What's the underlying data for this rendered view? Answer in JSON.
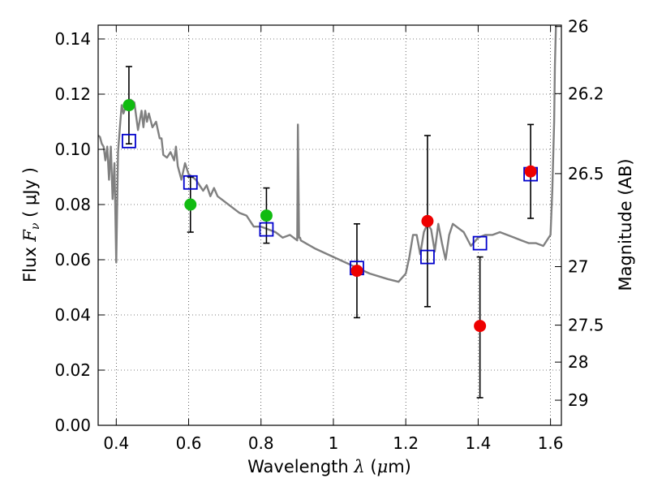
{
  "chart_data": {
    "type": "scatter",
    "xlabel": {
      "prefix": "Wavelength  ",
      "symbol": "λ",
      "unit_open": " (",
      "unit_mu": "μ",
      "unit_close": "m)"
    },
    "ylabel": {
      "prefix": "Flux  ",
      "symbol": "F",
      "subscript": "ν",
      "unit": "  ( μJy )"
    },
    "y2label": "Magnitude (AB)",
    "xlim": [
      0.35,
      1.63
    ],
    "ylim": [
      0.0,
      0.145
    ],
    "x_ticks": [
      {
        "value": 0.4,
        "label": "0.4"
      },
      {
        "value": 0.6,
        "label": "0.6"
      },
      {
        "value": 0.8,
        "label": "0.8"
      },
      {
        "value": 1.0,
        "label": "1"
      },
      {
        "value": 1.2,
        "label": "1.2"
      },
      {
        "value": 1.4,
        "label": "1.4"
      },
      {
        "value": 1.6,
        "label": "1.6"
      }
    ],
    "y_ticks": [
      {
        "value": 0.0,
        "label": "0.00"
      },
      {
        "value": 0.02,
        "label": "0.02"
      },
      {
        "value": 0.04,
        "label": "0.04"
      },
      {
        "value": 0.06,
        "label": "0.06"
      },
      {
        "value": 0.08,
        "label": "0.08"
      },
      {
        "value": 0.1,
        "label": "0.10"
      },
      {
        "value": 0.12,
        "label": "0.12"
      },
      {
        "value": 0.14,
        "label": "0.14"
      }
    ],
    "y2_ticks": [
      {
        "flux": 0.1445,
        "label": "26"
      },
      {
        "flux": 0.1202,
        "label": "26.2"
      },
      {
        "flux": 0.0912,
        "label": "26.5"
      },
      {
        "flux": 0.0575,
        "label": "27"
      },
      {
        "flux": 0.0363,
        "label": "27.5"
      },
      {
        "flux": 0.0229,
        "label": "28"
      },
      {
        "flux": 0.0091,
        "label": "29"
      }
    ],
    "grid": true,
    "grid_style": "dotted",
    "colors": {
      "model": "#808080",
      "green": "#11bb11",
      "red": "#ee0000",
      "box": "#0000cc",
      "errorbar": "#000000"
    },
    "model_spectrum": {
      "x": [
        0.35,
        0.355,
        0.36,
        0.365,
        0.37,
        0.375,
        0.38,
        0.385,
        0.39,
        0.395,
        0.4,
        0.405,
        0.41,
        0.415,
        0.42,
        0.43,
        0.44,
        0.45,
        0.46,
        0.47,
        0.475,
        0.48,
        0.485,
        0.49,
        0.5,
        0.51,
        0.52,
        0.525,
        0.53,
        0.54,
        0.55,
        0.56,
        0.565,
        0.57,
        0.58,
        0.59,
        0.6,
        0.61,
        0.62,
        0.63,
        0.64,
        0.65,
        0.66,
        0.67,
        0.68,
        0.7,
        0.72,
        0.74,
        0.76,
        0.78,
        0.8,
        0.82,
        0.84,
        0.86,
        0.88,
        0.9,
        0.902,
        0.905,
        0.908,
        0.91,
        0.95,
        1.0,
        1.05,
        1.1,
        1.15,
        1.18,
        1.2,
        1.21,
        1.22,
        1.23,
        1.24,
        1.25,
        1.26,
        1.27,
        1.28,
        1.29,
        1.3,
        1.31,
        1.32,
        1.33,
        1.34,
        1.36,
        1.38,
        1.4,
        1.42,
        1.44,
        1.46,
        1.48,
        1.5,
        1.52,
        1.54,
        1.56,
        1.58,
        1.6,
        1.605,
        1.61,
        1.612,
        1.615
      ],
      "y": [
        0.105,
        0.1045,
        0.102,
        0.101,
        0.096,
        0.101,
        0.089,
        0.101,
        0.082,
        0.095,
        0.059,
        0.099,
        0.108,
        0.116,
        0.113,
        0.117,
        0.118,
        0.117,
        0.107,
        0.114,
        0.108,
        0.114,
        0.11,
        0.113,
        0.108,
        0.11,
        0.104,
        0.104,
        0.098,
        0.097,
        0.099,
        0.096,
        0.101,
        0.094,
        0.089,
        0.095,
        0.091,
        0.09,
        0.089,
        0.087,
        0.085,
        0.087,
        0.083,
        0.086,
        0.083,
        0.081,
        0.079,
        0.077,
        0.076,
        0.072,
        0.072,
        0.071,
        0.07,
        0.068,
        0.069,
        0.067,
        0.109,
        0.068,
        0.068,
        0.067,
        0.064,
        0.061,
        0.058,
        0.055,
        0.053,
        0.052,
        0.055,
        0.061,
        0.069,
        0.069,
        0.062,
        0.07,
        0.073,
        0.071,
        0.063,
        0.073,
        0.066,
        0.06,
        0.069,
        0.073,
        0.072,
        0.07,
        0.065,
        0.068,
        0.069,
        0.069,
        0.07,
        0.069,
        0.068,
        0.067,
        0.066,
        0.066,
        0.065,
        0.069,
        0.085,
        0.11,
        0.13,
        0.145
      ]
    },
    "errorbars": [
      {
        "x": 0.435,
        "low": 0.102,
        "high": 0.13
      },
      {
        "x": 0.605,
        "low": 0.07,
        "high": 0.09
      },
      {
        "x": 0.815,
        "low": 0.066,
        "high": 0.086
      },
      {
        "x": 1.065,
        "low": 0.039,
        "high": 0.073
      },
      {
        "x": 1.26,
        "low": 0.043,
        "high": 0.105
      },
      {
        "x": 1.405,
        "low": 0.01,
        "high": 0.061
      },
      {
        "x": 1.545,
        "low": 0.075,
        "high": 0.109
      }
    ],
    "model_photometry": [
      {
        "x": 0.435,
        "y": 0.103
      },
      {
        "x": 0.605,
        "y": 0.088
      },
      {
        "x": 0.815,
        "y": 0.071
      },
      {
        "x": 1.065,
        "y": 0.057
      },
      {
        "x": 1.26,
        "y": 0.061
      },
      {
        "x": 1.405,
        "y": 0.066
      },
      {
        "x": 1.545,
        "y": 0.091
      }
    ],
    "observed_optical": [
      {
        "x": 0.435,
        "y": 0.116
      },
      {
        "x": 0.605,
        "y": 0.08
      },
      {
        "x": 0.815,
        "y": 0.076
      }
    ],
    "observed_nir": [
      {
        "x": 1.065,
        "y": 0.056
      },
      {
        "x": 1.26,
        "y": 0.074
      },
      {
        "x": 1.405,
        "y": 0.036
      },
      {
        "x": 1.545,
        "y": 0.092
      }
    ]
  }
}
